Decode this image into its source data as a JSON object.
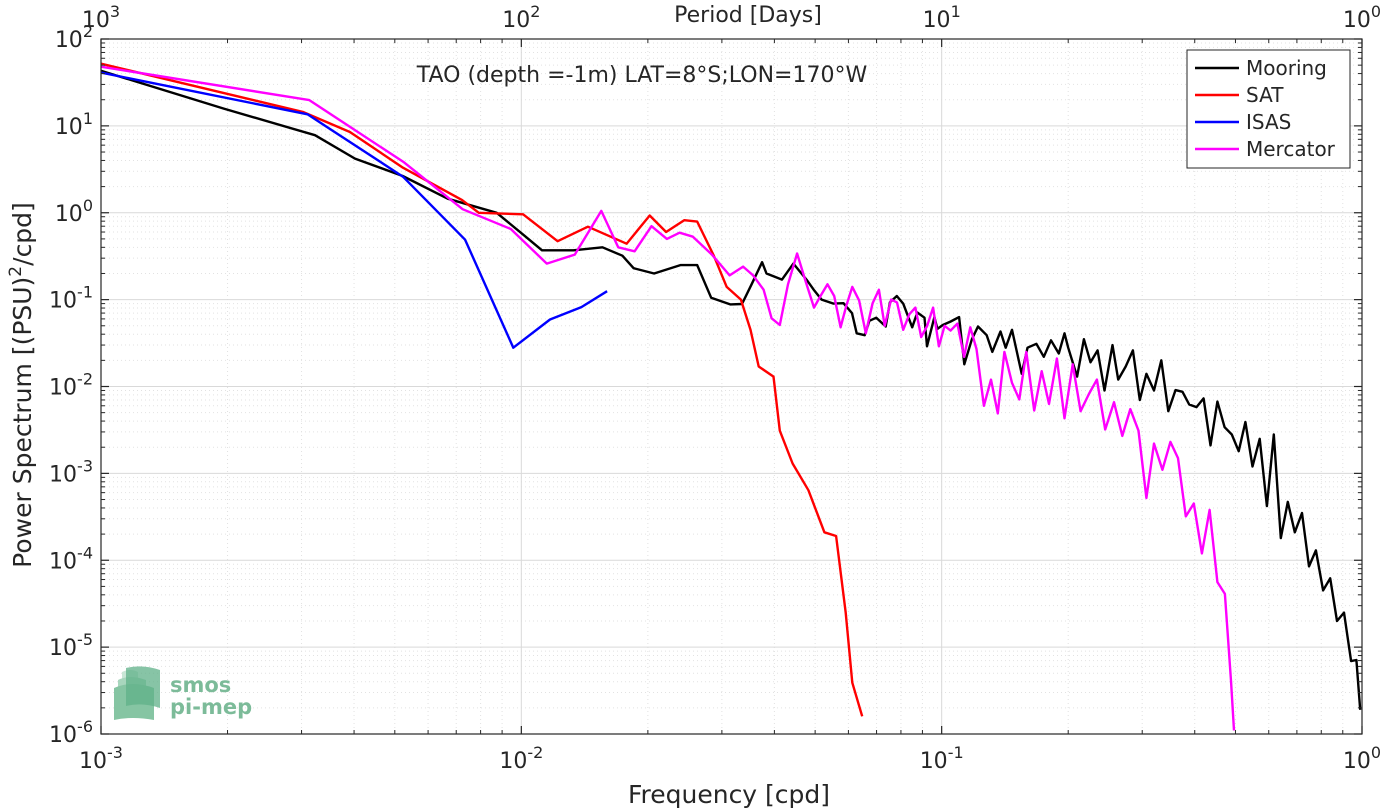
{
  "chart_data": {
    "type": "line",
    "title": "TAO (depth =-1m) LAT=8°S;LON=170°W",
    "xlabel": "Frequency [cpd]",
    "ylabel": "Power Spectrum [(PSU)²/cpd]",
    "ylabel_parts": {
      "pre": "Power Spectrum [(PSU)",
      "sup": "2",
      "post": "/cpd]"
    },
    "top_xlabel": "Period [Days]",
    "x_scale": "log",
    "y_scale": "log",
    "xlim": [
      0.001,
      1
    ],
    "ylim": [
      1e-06,
      100
    ],
    "grid": true,
    "minor_grid": true,
    "legend_position": "top-right",
    "x_ticks": [
      {
        "value": 0.001,
        "base": "10",
        "exp": "-3"
      },
      {
        "value": 0.01,
        "base": "10",
        "exp": "-2"
      },
      {
        "value": 0.1,
        "base": "10",
        "exp": "-1"
      },
      {
        "value": 1,
        "base": "10",
        "exp": "0"
      }
    ],
    "y_ticks": [
      {
        "value": 100,
        "base": "10",
        "exp": "2"
      },
      {
        "value": 10,
        "base": "10",
        "exp": "1"
      },
      {
        "value": 1,
        "base": "10",
        "exp": "0"
      },
      {
        "value": 0.1,
        "base": "10",
        "exp": "-1"
      },
      {
        "value": 0.01,
        "base": "10",
        "exp": "-2"
      },
      {
        "value": 0.001,
        "base": "10",
        "exp": "-3"
      },
      {
        "value": 0.0001,
        "base": "10",
        "exp": "-4"
      },
      {
        "value": 1e-05,
        "base": "10",
        "exp": "-5"
      },
      {
        "value": 1e-06,
        "base": "10",
        "exp": "-6"
      }
    ],
    "top_ticks": [
      {
        "value": 0.001,
        "base": "10",
        "exp": "3"
      },
      {
        "value": 0.01,
        "base": "10",
        "exp": "2"
      },
      {
        "value": 0.1,
        "base": "10",
        "exp": "1"
      },
      {
        "value": 1,
        "base": "10",
        "exp": "0"
      }
    ],
    "series": [
      {
        "name": "Mooring",
        "color": "#000000",
        "x": [
          0.001,
          0.00196,
          0.00323,
          0.00402,
          0.00522,
          0.00668,
          0.00874,
          0.0101,
          0.0112,
          0.0133,
          0.0156,
          0.0174,
          0.0185,
          0.0207,
          0.0239,
          0.0262,
          0.0283,
          0.0314,
          0.0335,
          0.0353,
          0.0374,
          0.0383,
          0.0417,
          0.0444,
          0.0477,
          0.0496,
          0.0518,
          0.0553,
          0.0584,
          0.0612,
          0.0628,
          0.0656,
          0.0673,
          0.0699,
          0.0736,
          0.0753,
          0.0782,
          0.081,
          0.0851,
          0.0875,
          0.091,
          0.0923,
          0.0961,
          0.0977,
          0.1006,
          0.1051,
          0.11,
          0.1132,
          0.118,
          0.122,
          0.128,
          0.132,
          0.138,
          0.142,
          0.147,
          0.155,
          0.16,
          0.168,
          0.175,
          0.182,
          0.19,
          0.196,
          0.2,
          0.21,
          0.218,
          0.226,
          0.235,
          0.244,
          0.255,
          0.263,
          0.274,
          0.285,
          0.296,
          0.307,
          0.32,
          0.333,
          0.346,
          0.36,
          0.374,
          0.388,
          0.404,
          0.42,
          0.436,
          0.453,
          0.471,
          0.49,
          0.509,
          0.528,
          0.549,
          0.571,
          0.594,
          0.617,
          0.641,
          0.666,
          0.692,
          0.72,
          0.748,
          0.777,
          0.808,
          0.84,
          0.872,
          0.906,
          0.942,
          0.97,
          0.99
        ],
        "y": [
          43,
          15.8,
          7.8,
          4.2,
          2.65,
          1.45,
          1.0,
          0.56,
          0.37,
          0.37,
          0.4,
          0.32,
          0.23,
          0.2,
          0.25,
          0.25,
          0.105,
          0.088,
          0.089,
          0.15,
          0.27,
          0.2,
          0.17,
          0.26,
          0.17,
          0.13,
          0.1,
          0.09,
          0.091,
          0.07,
          0.041,
          0.039,
          0.057,
          0.062,
          0.049,
          0.093,
          0.11,
          0.09,
          0.048,
          0.071,
          0.062,
          0.029,
          0.063,
          0.046,
          0.051,
          0.056,
          0.063,
          0.018,
          0.035,
          0.049,
          0.039,
          0.025,
          0.043,
          0.028,
          0.045,
          0.014,
          0.028,
          0.031,
          0.022,
          0.034,
          0.024,
          0.041,
          0.028,
          0.013,
          0.035,
          0.019,
          0.026,
          0.009,
          0.03,
          0.012,
          0.017,
          0.026,
          0.007,
          0.014,
          0.009,
          0.02,
          0.0052,
          0.0091,
          0.0087,
          0.0062,
          0.0058,
          0.0073,
          0.0021,
          0.0067,
          0.0034,
          0.0028,
          0.0018,
          0.0039,
          0.0012,
          0.0025,
          0.00042,
          0.0028,
          0.00018,
          0.00047,
          0.00021,
          0.00035,
          8.5e-05,
          0.00013,
          4.5e-05,
          6.2e-05,
          2e-05,
          2.5e-05,
          6.9e-06,
          7.1e-06,
          1.9e-06
        ]
      },
      {
        "name": "SAT",
        "color": "#ff0000",
        "x": [
          0.001,
          0.00302,
          0.00391,
          0.00523,
          0.00723,
          0.00792,
          0.0101,
          0.0122,
          0.0144,
          0.0178,
          0.0202,
          0.0221,
          0.0244,
          0.0262,
          0.0287,
          0.0308,
          0.0333,
          0.0351,
          0.0367,
          0.0398,
          0.0412,
          0.0442,
          0.0482,
          0.0526,
          0.0561,
          0.0591,
          0.0613,
          0.0647
        ],
        "y": [
          52,
          14.5,
          8.5,
          3.3,
          1.4,
          1.0,
          0.96,
          0.47,
          0.69,
          0.44,
          0.93,
          0.6,
          0.82,
          0.79,
          0.32,
          0.14,
          0.1,
          0.045,
          0.017,
          0.013,
          0.0031,
          0.0013,
          0.00064,
          0.00021,
          0.00019,
          2.5e-05,
          3.9e-06,
          1.6e-06
        ]
      },
      {
        "name": "ISAS",
        "color": "#0000ff",
        "x": [
          0.001,
          0.0031,
          0.00523,
          0.00735,
          0.00957,
          0.0117,
          0.0139,
          0.016
        ],
        "y": [
          41,
          13.6,
          2.6,
          0.49,
          0.028,
          0.059,
          0.082,
          0.125
        ]
      },
      {
        "name": "Mercator",
        "color": "#ff00ff",
        "x": [
          0.001,
          0.00313,
          0.00526,
          0.00725,
          0.00944,
          0.0115,
          0.0134,
          0.0155,
          0.017,
          0.0186,
          0.0204,
          0.0222,
          0.0238,
          0.0256,
          0.0284,
          0.0313,
          0.0337,
          0.0356,
          0.0377,
          0.0394,
          0.0412,
          0.0431,
          0.0453,
          0.0475,
          0.0497,
          0.0515,
          0.0535,
          0.0555,
          0.0575,
          0.0593,
          0.0613,
          0.0636,
          0.066,
          0.0685,
          0.0709,
          0.0732,
          0.0758,
          0.0783,
          0.081,
          0.0838,
          0.0866,
          0.0894,
          0.0924,
          0.0954,
          0.0985,
          0.1016,
          0.105,
          0.109,
          0.113,
          0.117,
          0.121,
          0.126,
          0.131,
          0.136,
          0.141,
          0.147,
          0.153,
          0.159,
          0.166,
          0.173,
          0.18,
          0.188,
          0.196,
          0.205,
          0.214,
          0.224,
          0.234,
          0.245,
          0.257,
          0.269,
          0.281,
          0.294,
          0.307,
          0.32,
          0.335,
          0.35,
          0.365,
          0.381,
          0.398,
          0.416,
          0.434,
          0.453,
          0.472,
          0.488,
          0.496
        ],
        "y": [
          48,
          19.8,
          3.8,
          1.1,
          0.65,
          0.26,
          0.33,
          1.05,
          0.4,
          0.36,
          0.7,
          0.5,
          0.59,
          0.53,
          0.33,
          0.19,
          0.24,
          0.19,
          0.13,
          0.061,
          0.051,
          0.15,
          0.34,
          0.16,
          0.081,
          0.11,
          0.15,
          0.11,
          0.048,
          0.085,
          0.14,
          0.098,
          0.041,
          0.091,
          0.13,
          0.05,
          0.1,
          0.093,
          0.045,
          0.068,
          0.081,
          0.037,
          0.05,
          0.081,
          0.029,
          0.05,
          0.044,
          0.053,
          0.022,
          0.048,
          0.027,
          0.006,
          0.012,
          0.0049,
          0.025,
          0.011,
          0.0071,
          0.025,
          0.0053,
          0.015,
          0.0063,
          0.021,
          0.0043,
          0.018,
          0.0052,
          0.0082,
          0.012,
          0.0032,
          0.0066,
          0.0027,
          0.0055,
          0.0031,
          0.00052,
          0.0022,
          0.0011,
          0.0023,
          0.0015,
          0.00032,
          0.00045,
          0.00012,
          0.00038,
          5.6e-05,
          4.1e-05,
          4.1e-06,
          1.1e-06
        ]
      }
    ]
  },
  "watermark": {
    "line1": "smos",
    "line2": "pi-mep"
  }
}
